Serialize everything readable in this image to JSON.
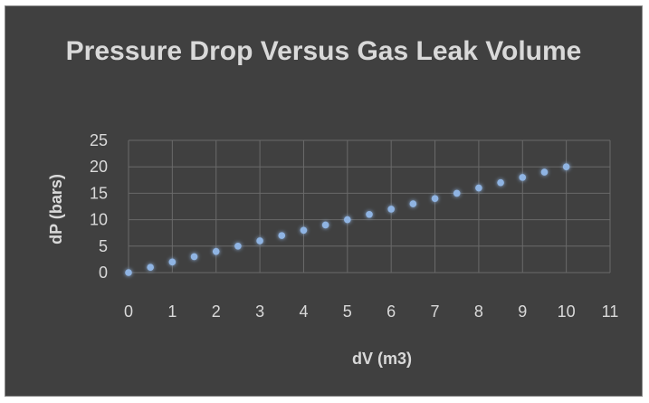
{
  "chart_data": {
    "type": "scatter",
    "title": "Pressure Drop Versus Gas Leak Volume",
    "xlabel": "dV (m3)",
    "ylabel": "dP (bars)",
    "xlim": [
      0,
      11
    ],
    "ylim": [
      0,
      25
    ],
    "x_ticks": [
      0,
      1,
      2,
      3,
      4,
      5,
      6,
      7,
      8,
      9,
      10,
      11
    ],
    "y_ticks": [
      0,
      5,
      10,
      15,
      20,
      25
    ],
    "grid": true,
    "legend": "none",
    "series": [
      {
        "x": [
          0,
          0.5,
          1,
          1.5,
          2,
          2.5,
          3,
          3.5,
          4,
          4.5,
          5,
          5.5,
          6,
          6.5,
          7,
          7.5,
          8,
          8.5,
          9,
          9.5,
          10
        ],
        "y": [
          0,
          1,
          2,
          3,
          4,
          5,
          6,
          7,
          8,
          9,
          10,
          11,
          12,
          13,
          14,
          15,
          16,
          17,
          18,
          19,
          20
        ],
        "color": "#8fb4e3"
      }
    ],
    "colors": {
      "background": "#404040",
      "grid": "#6a6a6a",
      "text": "#d9d9d9",
      "marker": "#8fb4e3"
    }
  }
}
